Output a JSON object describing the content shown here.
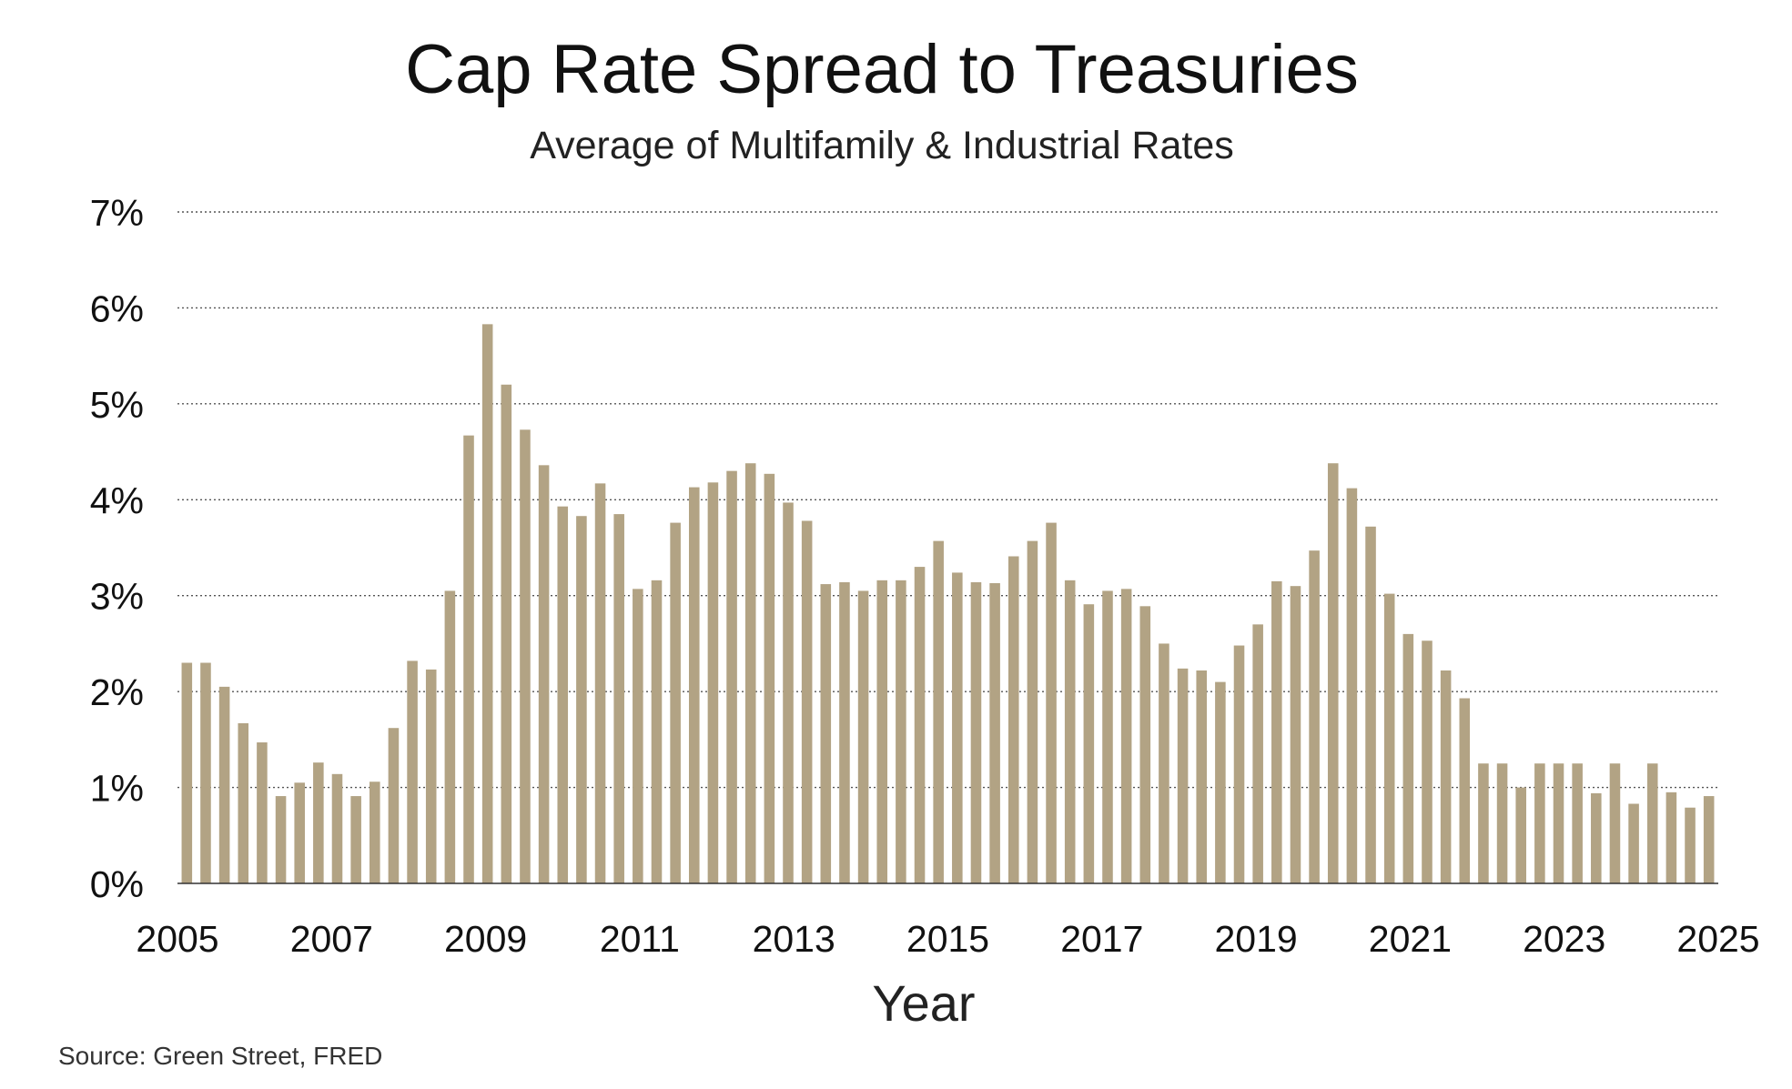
{
  "chart_data": {
    "type": "bar",
    "title": "Cap Rate Spread to Treasuries",
    "subtitle": "Average of Multifamily & Industrial Rates",
    "xlabel": "Year",
    "ylabel": "",
    "source": "Source: Green Street, FRED",
    "ylim": [
      0,
      7
    ],
    "xlim": [
      2005,
      2025
    ],
    "x_tick_values": [
      2005,
      2007,
      2009,
      2011,
      2013,
      2015,
      2017,
      2019,
      2021,
      2023,
      2025
    ],
    "x_tick_labels": [
      "2005",
      "2007",
      "2009",
      "2011",
      "2013",
      "2015",
      "2017",
      "2019",
      "2021",
      "2023",
      "2025"
    ],
    "y_tick_values": [
      0,
      1,
      2,
      3,
      4,
      5,
      6,
      7
    ],
    "y_tick_labels": [
      "0%",
      "1%",
      "2%",
      "3%",
      "4%",
      "5%",
      "6%",
      "7%"
    ],
    "grid": true,
    "bar_color": "#b2a384",
    "series": [
      {
        "frequency": "quarterly",
        "values": [
          2.3,
          2.3,
          2.05,
          1.67,
          1.47,
          0.91,
          1.05,
          1.26,
          1.14,
          0.91,
          1.06,
          1.62,
          2.32,
          2.23,
          3.05,
          4.67,
          5.83,
          5.2,
          4.73,
          4.36,
          3.93,
          3.83,
          4.17,
          3.85,
          3.07,
          3.16,
          3.76,
          4.13,
          4.18,
          4.3,
          4.38,
          4.27,
          3.97,
          3.78,
          3.12,
          3.14,
          3.05,
          3.16,
          3.16,
          3.3,
          3.57,
          3.24,
          3.14,
          3.13,
          3.41,
          3.57,
          3.76,
          3.16,
          2.91,
          3.05,
          3.07,
          2.89,
          2.5,
          2.24,
          2.22,
          2.1,
          2.48,
          2.7,
          3.15,
          3.1,
          3.47,
          4.38,
          4.12,
          3.72,
          3.02,
          2.6,
          2.53,
          2.22,
          1.93,
          1.25,
          1.25,
          1.0,
          1.25,
          1.25,
          1.25,
          0.94,
          1.25,
          0.83,
          1.25,
          0.95,
          0.79,
          0.91
        ]
      }
    ]
  }
}
